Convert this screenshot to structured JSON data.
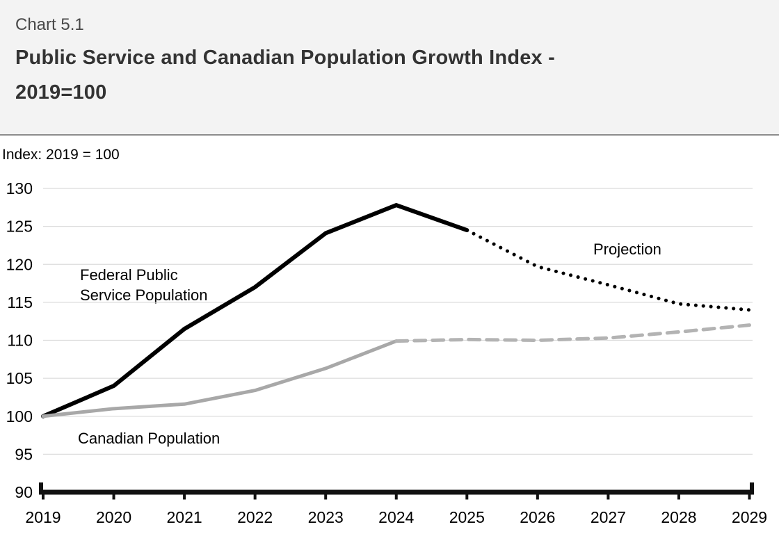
{
  "header": {
    "chart_number": "Chart 5.1",
    "title_line1": "Public Service and Canadian Population Growth Index -",
    "title_line2": "2019=100"
  },
  "chart_data": {
    "type": "line",
    "title": "Public Service and Canadian Population Growth Index - 2019=100",
    "unit_label": "Index: 2019 = 100",
    "xlabel": "",
    "ylabel": "Index: 2019 = 100",
    "x_ticks": [
      2019,
      2020,
      2021,
      2022,
      2023,
      2024,
      2025,
      2026,
      2027,
      2028,
      2029
    ],
    "ylim": [
      90,
      130
    ],
    "ytick_step": 5,
    "grid": "horizontal",
    "legend_position": "in-plot text annotations",
    "series": [
      {
        "name": "Federal Public Service Population",
        "segment": "actual",
        "line_style": "solid",
        "color": "#000000",
        "x": [
          2019,
          2020,
          2021,
          2022,
          2023,
          2024,
          2025
        ],
        "values": [
          100,
          104,
          111.5,
          117,
          124.1,
          127.8,
          124.5
        ]
      },
      {
        "name": "Federal Public Service Population - projection",
        "segment": "projection",
        "line_style": "dotted",
        "color": "#000000",
        "x": [
          2025,
          2026,
          2027,
          2028,
          2029
        ],
        "values": [
          124.5,
          119.7,
          117.3,
          114.8,
          114
        ]
      },
      {
        "name": "Canadian Population",
        "segment": "actual",
        "line_style": "solid",
        "color": "#a8a8a8",
        "x": [
          2019,
          2020,
          2021,
          2022,
          2023,
          2024
        ],
        "values": [
          100,
          101,
          101.6,
          103.4,
          106.3,
          109.9
        ]
      },
      {
        "name": "Canadian Population - projection",
        "segment": "projection",
        "line_style": "dashed",
        "color": "#b3b3b3",
        "x": [
          2024,
          2025,
          2026,
          2027,
          2028,
          2029
        ],
        "values": [
          109.9,
          110.1,
          110,
          110.3,
          111.1,
          112
        ]
      }
    ],
    "annotations": {
      "fps_label_line1": "Federal Public",
      "fps_label_line2": "Service Population",
      "canadian_label": "Canadian Population",
      "projection_label": "Projection"
    }
  },
  "colors": {
    "header_bg": "#f3f3f3",
    "header_border": "#8c8c8c",
    "gridline": "#dcdcdc",
    "axis": "#111111",
    "fps_line": "#000000",
    "canadian_line": "#a8a8a8",
    "canadian_projection_line": "#b3b3b3"
  }
}
